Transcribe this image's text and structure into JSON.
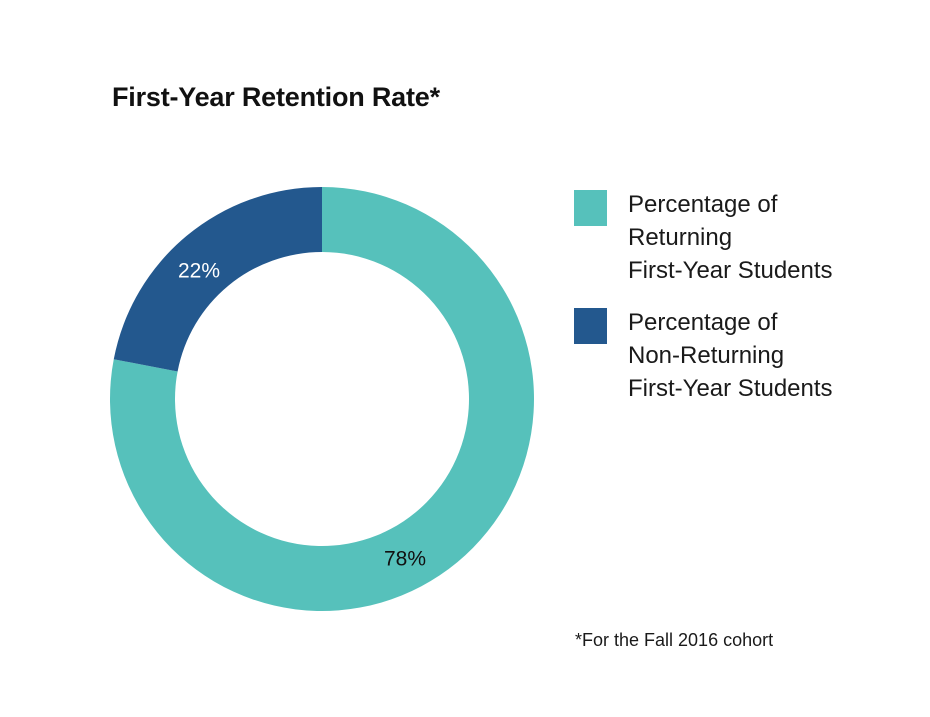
{
  "chart_data": {
    "type": "pie",
    "title": "First-Year Retention Rate*",
    "categories": [
      "Percentage of Returning First-Year Students",
      "Percentage of Non-Returning First-Year Students"
    ],
    "values": [
      78,
      22
    ],
    "data_labels": [
      "78%",
      "22%"
    ],
    "colors": [
      "#56c1bb",
      "#23588e"
    ],
    "legend": {
      "placement": "right",
      "entries": [
        {
          "lines": [
            "Percentage of",
            "Returning",
            "First-Year Students"
          ],
          "color": "#56c1bb"
        },
        {
          "lines": [
            "Percentage of",
            "Non-Returning",
            "First-Year Students"
          ],
          "color": "#23588e"
        }
      ]
    },
    "donut": true,
    "footnote": "*For the Fall 2016 cohort"
  }
}
